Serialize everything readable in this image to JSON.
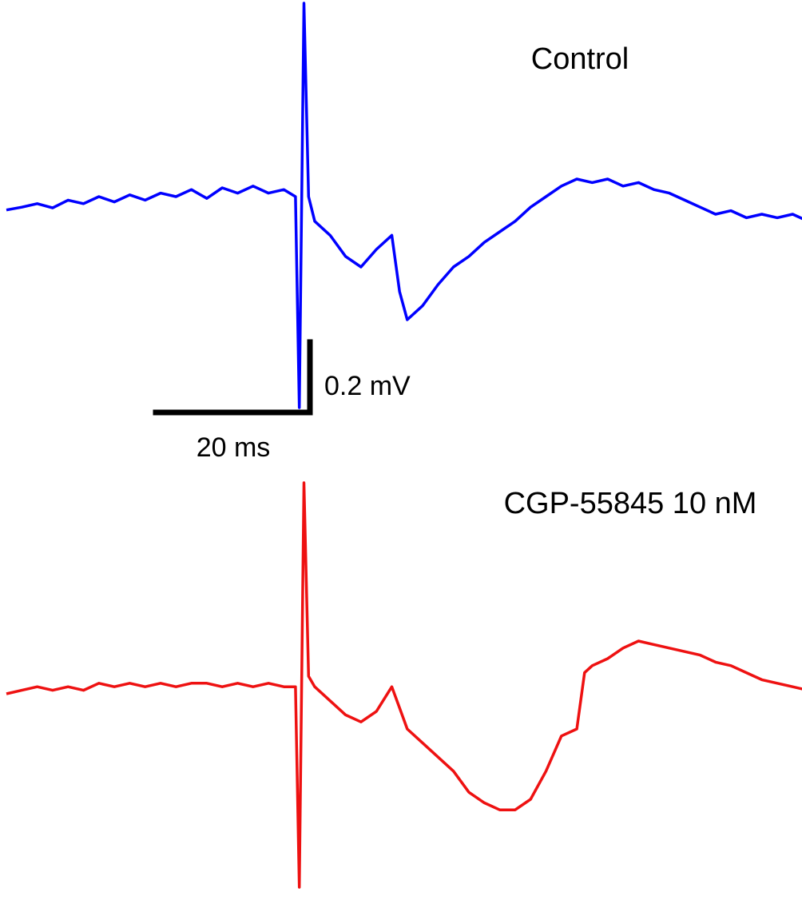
{
  "chart_data": [
    {
      "type": "line",
      "title": "Control",
      "xlabel": "",
      "ylabel": "",
      "grid": false,
      "series": [
        {
          "color": "#0000ff",
          "points": [
            [
              0,
              0.012
            ],
            [
              2,
              0.02
            ],
            [
              4,
              0.03
            ],
            [
              6,
              0.018
            ],
            [
              8,
              0.04
            ],
            [
              10,
              0.03
            ],
            [
              12,
              0.05
            ],
            [
              14,
              0.035
            ],
            [
              16,
              0.055
            ],
            [
              18,
              0.04
            ],
            [
              20,
              0.06
            ],
            [
              22,
              0.05
            ],
            [
              24,
              0.07
            ],
            [
              26,
              0.045
            ],
            [
              28,
              0.075
            ],
            [
              30,
              0.06
            ],
            [
              32,
              0.08
            ],
            [
              34,
              0.06
            ],
            [
              36,
              0.07
            ],
            [
              37.5,
              0.05
            ],
            [
              38,
              -0.55
            ],
            [
              38.6,
              0.6
            ],
            [
              39.2,
              0.05
            ],
            [
              40,
              -0.02
            ],
            [
              42,
              -0.06
            ],
            [
              44,
              -0.12
            ],
            [
              46,
              -0.15
            ],
            [
              48,
              -0.1
            ],
            [
              50,
              -0.06
            ],
            [
              51,
              -0.22
            ],
            [
              52,
              -0.3
            ],
            [
              54,
              -0.26
            ],
            [
              56,
              -0.2
            ],
            [
              58,
              -0.15
            ],
            [
              60,
              -0.12
            ],
            [
              62,
              -0.08
            ],
            [
              64,
              -0.05
            ],
            [
              66,
              -0.02
            ],
            [
              68,
              0.02
            ],
            [
              70,
              0.05
            ],
            [
              72,
              0.08
            ],
            [
              74,
              0.1
            ],
            [
              76,
              0.09
            ],
            [
              78,
              0.1
            ],
            [
              80,
              0.08
            ],
            [
              82,
              0.09
            ],
            [
              84,
              0.07
            ],
            [
              86,
              0.06
            ],
            [
              88,
              0.04
            ],
            [
              90,
              0.02
            ],
            [
              92,
              0.0
            ],
            [
              94,
              0.01
            ],
            [
              96,
              -0.01
            ],
            [
              98,
              0.0
            ],
            [
              100,
              -0.01
            ],
            [
              102,
              0.0
            ],
            [
              104,
              -0.02
            ],
            [
              106,
              0.0
            ],
            [
              108,
              -0.01
            ],
            [
              110,
              0.0
            ],
            [
              112,
              0.02
            ],
            [
              114,
              0.01
            ],
            [
              115.5,
              0.02
            ],
            [
              116,
              -0.54
            ],
            [
              116.6,
              0.61
            ],
            [
              117.2,
              0.05
            ],
            [
              118,
              0.03
            ],
            [
              120,
              -0.02
            ],
            [
              122,
              -0.06
            ],
            [
              124,
              -0.1
            ],
            [
              126,
              -0.08
            ],
            [
              128,
              -0.04
            ],
            [
              130,
              -0.1
            ],
            [
              132,
              -0.14
            ],
            [
              134,
              -0.2
            ],
            [
              136,
              -0.24
            ],
            [
              138,
              -0.3
            ],
            [
              140,
              -0.32
            ],
            [
              142,
              -0.2
            ],
            [
              144,
              -0.06
            ],
            [
              146,
              -0.02
            ],
            [
              148,
              0.01
            ],
            [
              150,
              0.04
            ],
            [
              152,
              0.06
            ],
            [
              154,
              0.09
            ],
            [
              156,
              0.1
            ],
            [
              158,
              0.09
            ],
            [
              160,
              0.11
            ],
            [
              162,
              0.12
            ],
            [
              164,
              0.13
            ],
            [
              166,
              0.14
            ],
            [
              168,
              0.12
            ],
            [
              170,
              0.1
            ],
            [
              172,
              0.08
            ],
            [
              174,
              0.06
            ],
            [
              176,
              0.04
            ],
            [
              178,
              0.02
            ],
            [
              180,
              0.01
            ],
            [
              182,
              0.02
            ],
            [
              184,
              0.0
            ],
            [
              186,
              0.01
            ],
            [
              188,
              0.0
            ],
            [
              190,
              0.01
            ],
            [
              192,
              0.0
            ],
            [
              194,
              0.01
            ]
          ]
        }
      ]
    },
    {
      "type": "line",
      "title": "CGP-55845 10 nM",
      "xlabel": "",
      "ylabel": "",
      "grid": false,
      "series": [
        {
          "color": "#ee1111",
          "points": [
            [
              0,
              0.0
            ],
            [
              2,
              0.01
            ],
            [
              4,
              0.02
            ],
            [
              6,
              0.01
            ],
            [
              8,
              0.02
            ],
            [
              10,
              0.01
            ],
            [
              12,
              0.03
            ],
            [
              14,
              0.02
            ],
            [
              16,
              0.03
            ],
            [
              18,
              0.02
            ],
            [
              20,
              0.03
            ],
            [
              22,
              0.02
            ],
            [
              24,
              0.03
            ],
            [
              26,
              0.03
            ],
            [
              28,
              0.02
            ],
            [
              30,
              0.03
            ],
            [
              32,
              0.02
            ],
            [
              34,
              0.03
            ],
            [
              36,
              0.02
            ],
            [
              37.5,
              0.02
            ],
            [
              38,
              -0.55
            ],
            [
              38.6,
              0.6
            ],
            [
              39.2,
              0.05
            ],
            [
              40,
              0.02
            ],
            [
              42,
              -0.02
            ],
            [
              44,
              -0.06
            ],
            [
              46,
              -0.08
            ],
            [
              48,
              -0.05
            ],
            [
              50,
              0.02
            ],
            [
              51,
              -0.04
            ],
            [
              52,
              -0.1
            ],
            [
              54,
              -0.14
            ],
            [
              56,
              -0.18
            ],
            [
              58,
              -0.22
            ],
            [
              60,
              -0.28
            ],
            [
              62,
              -0.31
            ],
            [
              64,
              -0.33
            ],
            [
              66,
              -0.33
            ],
            [
              68,
              -0.3
            ],
            [
              70,
              -0.22
            ],
            [
              72,
              -0.12
            ],
            [
              74,
              -0.1
            ],
            [
              75,
              0.06
            ],
            [
              76,
              0.08
            ],
            [
              78,
              0.1
            ],
            [
              80,
              0.13
            ],
            [
              82,
              0.15
            ],
            [
              84,
              0.14
            ],
            [
              86,
              0.13
            ],
            [
              88,
              0.12
            ],
            [
              90,
              0.11
            ],
            [
              92,
              0.09
            ],
            [
              94,
              0.08
            ],
            [
              96,
              0.06
            ],
            [
              98,
              0.04
            ],
            [
              100,
              0.03
            ],
            [
              102,
              0.02
            ],
            [
              104,
              0.01
            ],
            [
              106,
              0.01
            ],
            [
              108,
              0.01
            ],
            [
              110,
              0.0
            ],
            [
              112,
              0.0
            ],
            [
              114,
              0.0
            ],
            [
              115.5,
              0.0
            ],
            [
              116,
              -0.54
            ],
            [
              116.6,
              0.56
            ],
            [
              117.2,
              0.05
            ],
            [
              118,
              -0.02
            ],
            [
              120,
              -0.06
            ],
            [
              122,
              -0.1
            ],
            [
              124,
              -0.14
            ],
            [
              126,
              -0.05
            ],
            [
              128,
              0.02
            ],
            [
              130,
              -0.02
            ],
            [
              132,
              -0.08
            ],
            [
              134,
              -0.12
            ],
            [
              136,
              -0.17
            ],
            [
              138,
              -0.22
            ],
            [
              140,
              -0.26
            ],
            [
              142,
              -0.3
            ],
            [
              144,
              -0.35
            ],
            [
              146,
              -0.4
            ],
            [
              148,
              -0.44
            ],
            [
              150,
              -0.46
            ],
            [
              152,
              -0.4
            ],
            [
              154,
              -0.44
            ],
            [
              156,
              -0.3
            ],
            [
              158,
              -0.12
            ],
            [
              160,
              0.05
            ],
            [
              162,
              0.14
            ],
            [
              164,
              0.18
            ],
            [
              166,
              0.2
            ],
            [
              168,
              0.22
            ],
            [
              170,
              0.21
            ],
            [
              172,
              0.21
            ],
            [
              174,
              0.2
            ],
            [
              176,
              0.18
            ],
            [
              178,
              0.16
            ],
            [
              180,
              0.14
            ],
            [
              182,
              0.12
            ],
            [
              184,
              0.1
            ],
            [
              186,
              0.07
            ],
            [
              188,
              0.05
            ],
            [
              190,
              0.02
            ],
            [
              194,
              -0.01
            ]
          ]
        }
      ]
    }
  ],
  "scale_bar": {
    "time_label": "20 ms",
    "time_value": 20,
    "voltage_label": "0.2 mV",
    "voltage_value": 0.2
  }
}
